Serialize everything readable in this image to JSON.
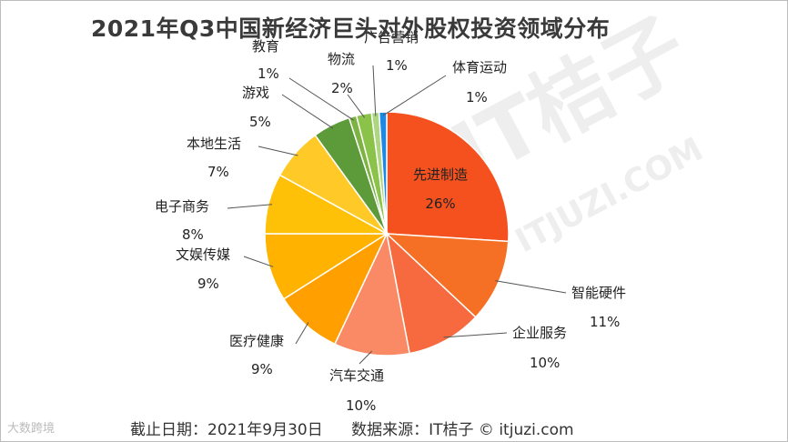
{
  "title": "2021年Q3中国新经济巨头对外股权投资领域分布",
  "footer": {
    "date": "截止日期：2021年9月30日",
    "source": "数据来源：IT桔子 © itjuzi.com"
  },
  "brand": "大数跨境",
  "watermark": {
    "main": "IT桔子",
    "sub": "ITJUZI.COM"
  },
  "chart_data": {
    "type": "pie",
    "title": "2021年Q3中国新经济巨头对外股权投资领域分布",
    "start": "12-o'clock",
    "direction": "clockwise",
    "slices": [
      {
        "label": "先进制造",
        "value": 26,
        "display": "26%",
        "color": "#f4511e"
      },
      {
        "label": "智能硬件",
        "value": 11,
        "display": "11%",
        "color": "#f57024"
      },
      {
        "label": "企业服务",
        "value": 10,
        "display": "10%",
        "color": "#f7693e"
      },
      {
        "label": "汽车交通",
        "value": 10,
        "display": "10%",
        "color": "#fa8966"
      },
      {
        "label": "医疗健康",
        "value": 9,
        "display": "9%",
        "color": "#ffa000"
      },
      {
        "label": "文娱传媒",
        "value": 9,
        "display": "9%",
        "color": "#ffb300"
      },
      {
        "label": "电子商务",
        "value": 8,
        "display": "8%",
        "color": "#ffc107"
      },
      {
        "label": "本地生活",
        "value": 7,
        "display": "7%",
        "color": "#ffca28"
      },
      {
        "label": "游戏",
        "value": 5,
        "display": "5%",
        "color": "#5d9b3a"
      },
      {
        "label": "教育",
        "value": 1,
        "display": "1%",
        "color": "#7cb342"
      },
      {
        "label": "物流",
        "value": 2,
        "display": "2%",
        "color": "#8bc34a"
      },
      {
        "label": "广告营销",
        "value": 1,
        "display": "1%",
        "color": "#aed581"
      },
      {
        "label": "体育运动",
        "value": 1,
        "display": "1%",
        "color": "#1e88e5"
      }
    ]
  }
}
